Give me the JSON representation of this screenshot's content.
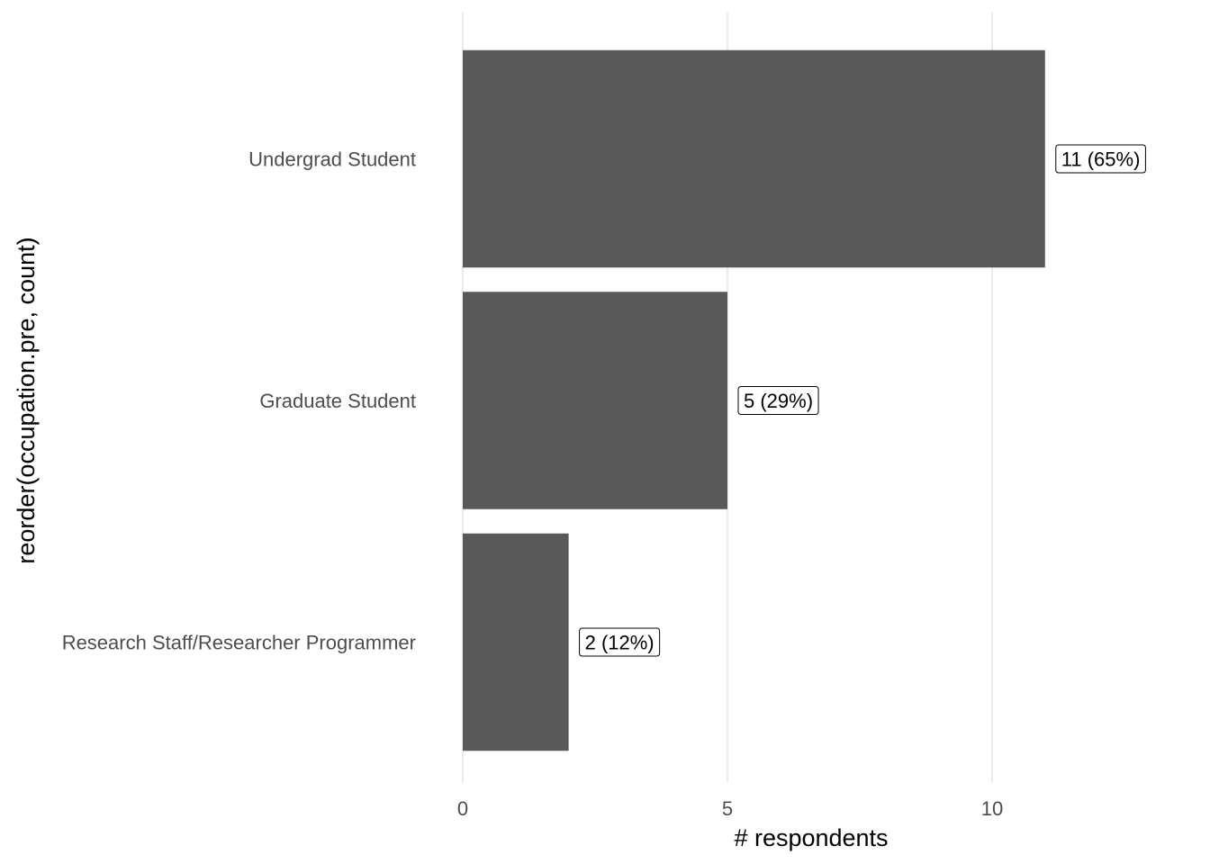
{
  "chart_data": {
    "type": "bar",
    "orientation": "horizontal",
    "categories": [
      "Undergrad Student",
      "Graduate Student",
      "Research Staff/Researcher Programmer"
    ],
    "values": [
      11,
      5,
      2
    ],
    "data_labels": [
      "11 (65%)",
      "5 (29%)",
      "2 (12%)"
    ],
    "xlabel": "# respondents",
    "ylabel": "reorder(occupation.pre, count)",
    "xlim": [
      0,
      13.3
    ],
    "x_ticks": [
      0,
      5,
      10
    ],
    "x_tick_labels": [
      "0",
      "5",
      "10"
    ],
    "grid": true,
    "legend": "none",
    "colors": {
      "bar": "#595959",
      "grid": "#ebebeb"
    }
  }
}
